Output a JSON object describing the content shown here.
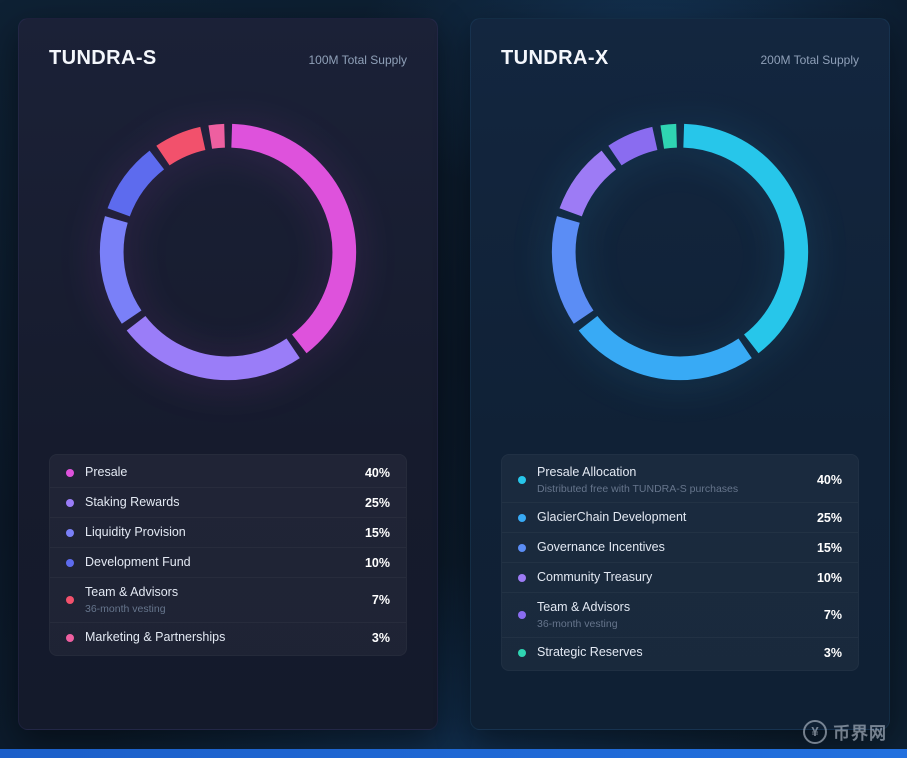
{
  "cards": [
    {
      "title": "TUNDRA-S",
      "supply": "100M Total Supply",
      "legend": [
        {
          "label": "Presale",
          "pct": "40%",
          "color": "#de52dc"
        },
        {
          "label": "Staking Rewards",
          "pct": "25%",
          "color": "#9a7df8"
        },
        {
          "label": "Liquidity Provision",
          "pct": "15%",
          "color": "#7a80f8"
        },
        {
          "label": "Development Fund",
          "pct": "10%",
          "color": "#5d6bee"
        },
        {
          "label": "Team & Advisors",
          "pct": "7%",
          "color": "#f2516c",
          "note": "36-month vesting"
        },
        {
          "label": "Marketing & Partnerships",
          "pct": "3%",
          "color": "#ee5fa0"
        }
      ]
    },
    {
      "title": "TUNDRA-X",
      "supply": "200M Total Supply",
      "legend": [
        {
          "label": "Presale Allocation",
          "pct": "40%",
          "color": "#27c6ea",
          "note": "Distributed free with TUNDRA-S purchases"
        },
        {
          "label": "GlacierChain Development",
          "pct": "25%",
          "color": "#38aaf5"
        },
        {
          "label": "Governance Incentives",
          "pct": "15%",
          "color": "#5b8df5"
        },
        {
          "label": "Community Treasury",
          "pct": "10%",
          "color": "#9d7bf5"
        },
        {
          "label": "Team & Advisors",
          "pct": "7%",
          "color": "#8a6cf0",
          "note": "36-month vesting"
        },
        {
          "label": "Strategic Reserves",
          "pct": "3%",
          "color": "#2fd4b2"
        }
      ]
    }
  ],
  "chart_data": [
    {
      "type": "pie",
      "variant": "donut",
      "title": "TUNDRA-S",
      "subtitle": "100M Total Supply",
      "categories": [
        "Presale",
        "Staking Rewards",
        "Liquidity Provision",
        "Development Fund",
        "Team & Advisors",
        "Marketing & Partnerships"
      ],
      "values": [
        40,
        25,
        15,
        10,
        7,
        3
      ],
      "unit": "%",
      "colors": [
        "#de52dc",
        "#9a7df8",
        "#7a80f8",
        "#5d6bee",
        "#f2516c",
        "#ee5fa0"
      ],
      "legend_position": "bottom",
      "start_angle": "top",
      "direction": "clockwise"
    },
    {
      "type": "pie",
      "variant": "donut",
      "title": "TUNDRA-X",
      "subtitle": "200M Total Supply",
      "categories": [
        "Presale Allocation",
        "GlacierChain Development",
        "Governance Incentives",
        "Community Treasury",
        "Team & Advisors",
        "Strategic Reserves"
      ],
      "values": [
        40,
        25,
        15,
        10,
        7,
        3
      ],
      "unit": "%",
      "colors": [
        "#27c6ea",
        "#38aaf5",
        "#5b8df5",
        "#9d7bf5",
        "#8a6cf0",
        "#2fd4b2"
      ],
      "legend_position": "bottom",
      "start_angle": "top",
      "direction": "clockwise"
    }
  ],
  "watermark": {
    "symbol": "¥",
    "text": "币界网"
  }
}
